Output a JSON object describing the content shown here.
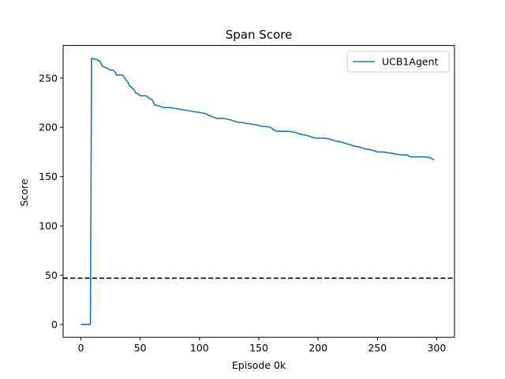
{
  "chart_data": {
    "type": "line",
    "title": "Span Score",
    "xlabel": "Episode 0k",
    "ylabel": "Score",
    "xlim": [
      -15,
      315
    ],
    "ylim": [
      -13,
      283
    ],
    "xticks": [
      0,
      50,
      100,
      150,
      200,
      250,
      300
    ],
    "yticks": [
      0,
      50,
      100,
      150,
      200,
      250
    ],
    "grid": false,
    "legend_position": "top-right",
    "reference_line": {
      "y": 47,
      "style": "dashed",
      "color": "#000000"
    },
    "series": [
      {
        "name": "UCB1Agent",
        "color": "#1f77b4",
        "x": [
          0,
          3,
          6,
          8,
          9,
          12,
          15,
          16,
          18,
          20,
          22,
          25,
          27,
          29,
          30,
          32,
          35,
          37,
          38,
          40,
          41,
          43,
          45,
          46,
          48,
          50,
          55,
          58,
          60,
          62,
          65,
          70,
          75,
          80,
          85,
          90,
          95,
          100,
          105,
          108,
          110,
          115,
          120,
          125,
          130,
          133,
          135,
          140,
          145,
          150,
          152,
          155,
          160,
          163,
          165,
          170,
          175,
          180,
          183,
          185,
          190,
          195,
          198,
          200,
          205,
          210,
          213,
          215,
          220,
          225,
          228,
          230,
          235,
          240,
          245,
          248,
          250,
          255,
          260,
          265,
          270,
          275,
          278,
          280,
          285,
          290,
          295,
          296,
          298
        ],
        "y": [
          0,
          0,
          0,
          0,
          270,
          269,
          268,
          267,
          262,
          261,
          260,
          258,
          258,
          256,
          253,
          253,
          253,
          250,
          248,
          245,
          242,
          240,
          238,
          235,
          234,
          232,
          232,
          229,
          228,
          223,
          222,
          220,
          220,
          219,
          218,
          217,
          216,
          215,
          214,
          212,
          211,
          209,
          209,
          208,
          206,
          205,
          205,
          204,
          203,
          202,
          201,
          201,
          200,
          197,
          196,
          196,
          196,
          195,
          194,
          193,
          192,
          190,
          189,
          189,
          189,
          188,
          187,
          186,
          185,
          183,
          182,
          181,
          180,
          178,
          177,
          176,
          175,
          175,
          174,
          173,
          172,
          172,
          170,
          170,
          170,
          170,
          169,
          168,
          167
        ]
      }
    ]
  }
}
